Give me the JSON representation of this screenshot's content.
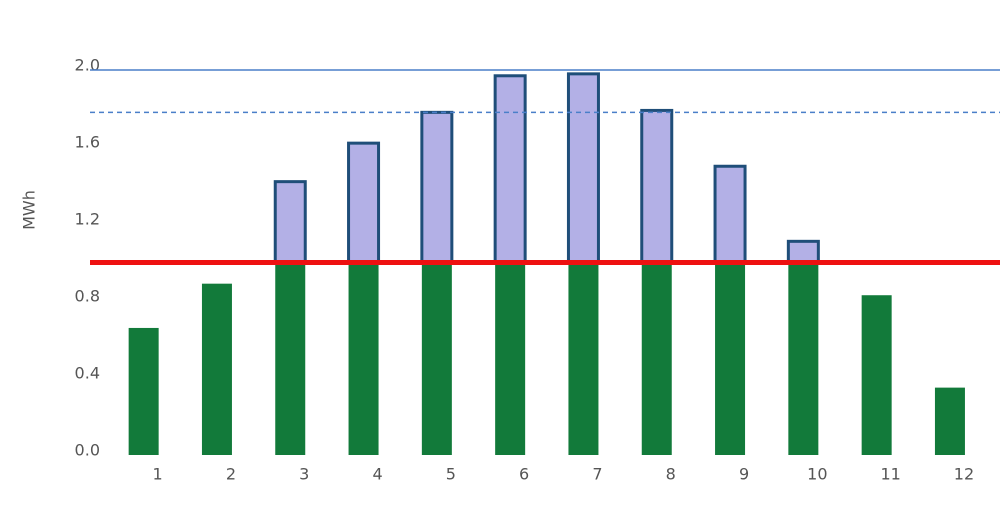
{
  "chart_data": {
    "type": "stacked_bar",
    "y_label": "MWh",
    "categories": [
      "1",
      "2",
      "3",
      "4",
      "5",
      "6",
      "7",
      "8",
      "9",
      "10",
      "11",
      "12"
    ],
    "series": [
      {
        "color": "#127a3a",
        "values": [
          0.66,
          0.89,
          1,
          1,
          1,
          1,
          1,
          1,
          1,
          1,
          0.83,
          0.35
        ]
      },
      {
        "color": "#b3b0e6",
        "stroke": "#1f4e79",
        "values": [
          null,
          null,
          0.42,
          0.62,
          0.78,
          0.97,
          0.98,
          0.79,
          0.5,
          0.11,
          null,
          null
        ]
      }
    ],
    "reference_lines": [
      {
        "value": 2,
        "color": "#4a7fc9",
        "style": "solid"
      },
      {
        "value": 1.78,
        "color": "#4a7fc9",
        "style": "dashed"
      },
      {
        "value": 1,
        "color": "#ee1111",
        "style": "solid"
      }
    ],
    "ylim": [
      0,
      2
    ],
    "yticks": [
      {
        "value": 0,
        "label": "0.0"
      },
      0.4,
      0.8,
      1.2,
      1.6,
      {
        "value": 2,
        "label": "2.0"
      }
    ],
    "grid": false
  }
}
